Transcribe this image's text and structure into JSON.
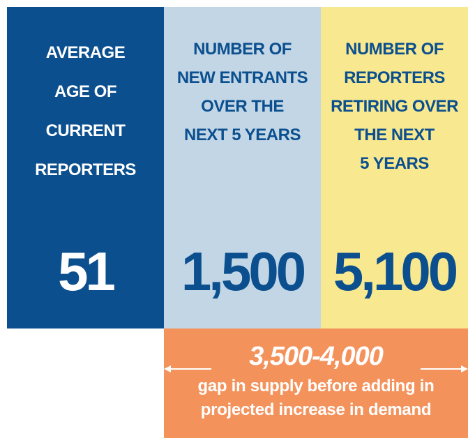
{
  "columns": [
    {
      "label_lines": [
        "AVERAGE",
        "AGE OF",
        "CURRENT",
        "REPORTERS"
      ],
      "value": "51"
    },
    {
      "label_lines": [
        "NUMBER OF",
        "NEW ENTRANTS",
        "OVER THE",
        "NEXT 5 YEARS"
      ],
      "value": "1,500"
    },
    {
      "label_lines": [
        "NUMBER OF",
        "REPORTERS",
        "RETIRING OVER",
        "THE NEXT",
        "5 YEARS"
      ],
      "value": "5,100"
    }
  ],
  "gap": {
    "range": "3,500-4,000",
    "desc_lines": [
      "gap in supply before adding in",
      "projected increase in demand"
    ]
  },
  "colors": {
    "dark_blue": "#0b4f8e",
    "light_blue": "#c2d6e6",
    "yellow": "#f8e88f",
    "orange": "#f4925c"
  }
}
